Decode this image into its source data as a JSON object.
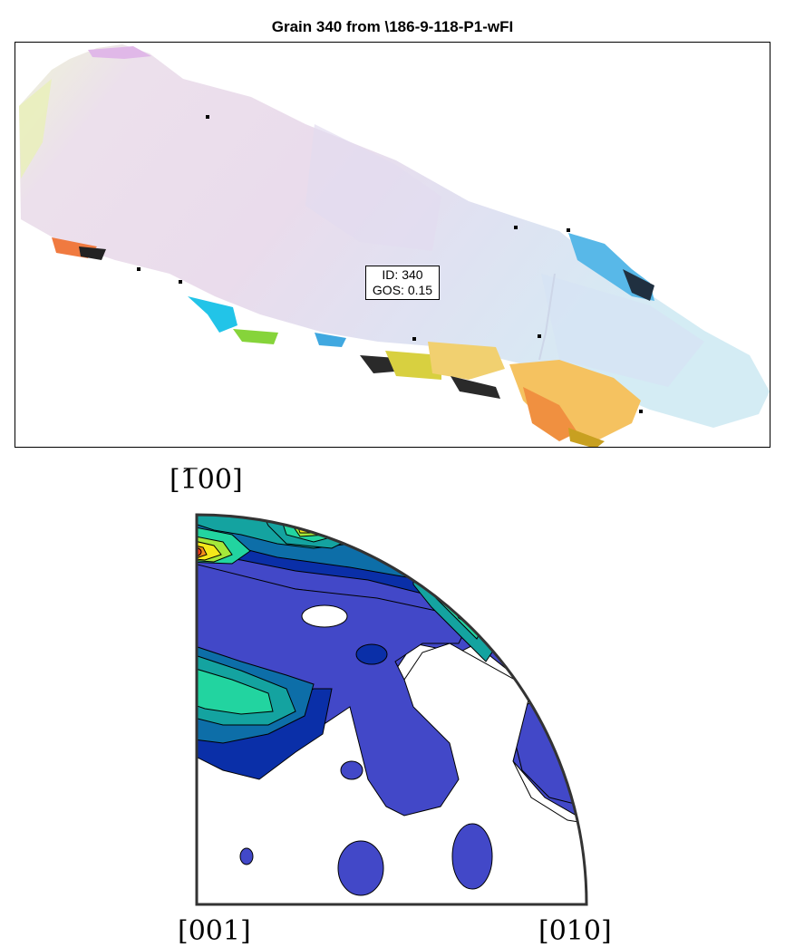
{
  "figure": {
    "title": "Grain 340 from \\186-9-118-P1-wFI"
  },
  "grain_label": {
    "id_text": "ID: 340",
    "gos_text": "GOS: 0.15"
  },
  "pole_figure": {
    "top_label": "[1̅00]",
    "bottom_left_label": "[001]",
    "bottom_right_label": "[010]",
    "colormap": [
      "#3f48c8",
      "#0a2fa8",
      "#0d6ea8",
      "#14a3a0",
      "#22d4a0",
      "#a5e83a",
      "#f5e81a",
      "#f5901a",
      "#ef3a14"
    ]
  },
  "colors": {
    "grain_base": "#e9def0",
    "grain_tint_blue": "#d6e2f4",
    "boundary": "#000000"
  }
}
